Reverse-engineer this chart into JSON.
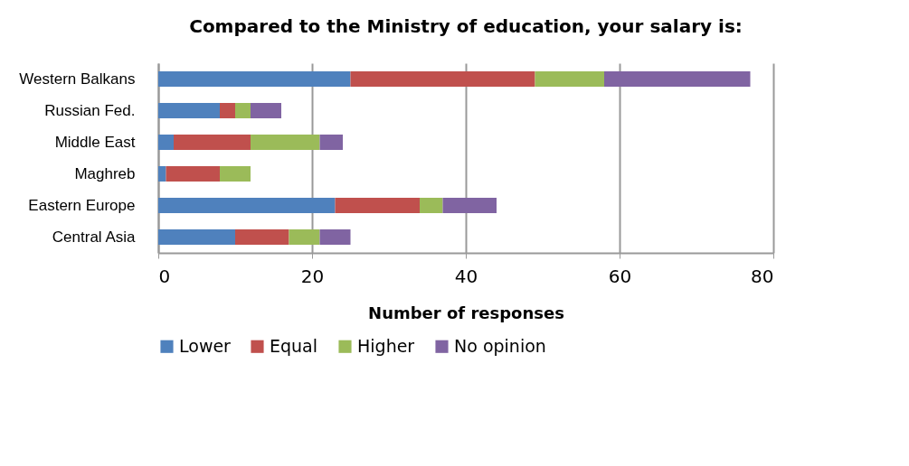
{
  "chart_data": {
    "type": "bar",
    "title": "Compared to the Ministry of education, your salary is:",
    "xlabel": "Number of responses",
    "categories": [
      "Western Balkans",
      "Russian Fed.",
      "Middle East",
      "Maghreb",
      "Eastern Europe",
      "Central Asia"
    ],
    "series": [
      {
        "name": "Lower",
        "color": "#4f81bd",
        "values": [
          25,
          8,
          2,
          1,
          23,
          10
        ]
      },
      {
        "name": "Equal",
        "color": "#c0504d",
        "values": [
          24,
          2,
          10,
          7,
          11,
          7
        ]
      },
      {
        "name": "Higher",
        "color": "#9bbb59",
        "values": [
          9,
          2,
          9,
          4,
          3,
          4
        ]
      },
      {
        "name": "No opinion",
        "color": "#8064a2",
        "values": [
          19,
          4,
          3,
          0,
          7,
          4
        ]
      }
    ],
    "stacked": true,
    "orientation": "horizontal",
    "xlim": [
      0,
      80
    ],
    "xticks": [
      0,
      20,
      40,
      60,
      80
    ],
    "grid": "x",
    "legend": "bottom"
  }
}
